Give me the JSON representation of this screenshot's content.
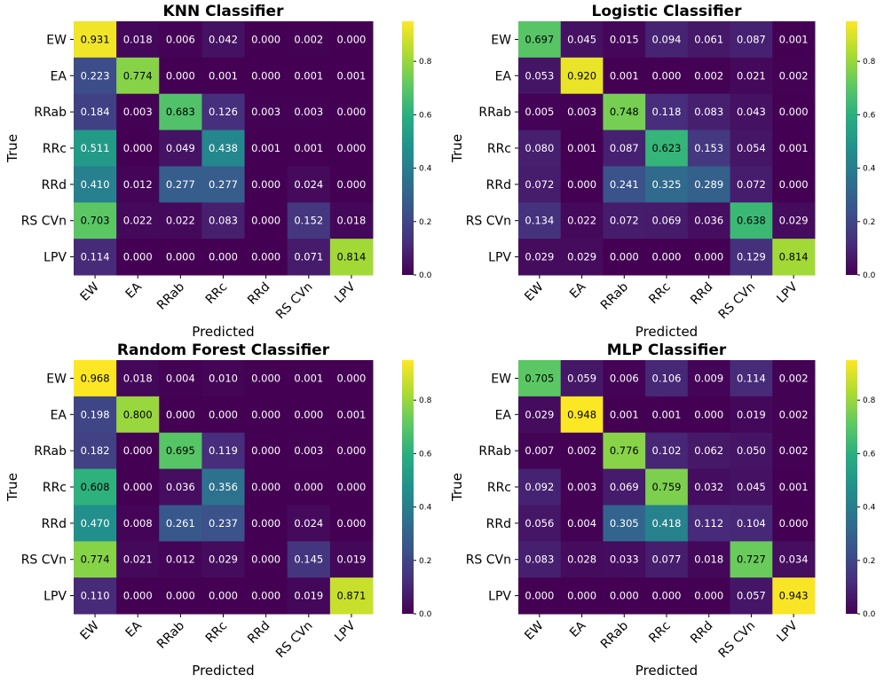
{
  "chart_data": [
    {
      "type": "heatmap",
      "title": "KNN Classifier",
      "xlabel": "Predicted",
      "ylabel": "True",
      "categories": [
        "EW",
        "EA",
        "RRab",
        "RRc",
        "RRd",
        "RS CVn",
        "LPV"
      ],
      "colormap": "viridis",
      "colorbar_ticks": [
        "0.0",
        "0.2",
        "0.4",
        "0.6",
        "0.8"
      ],
      "values": [
        [
          "0.931",
          "0.018",
          "0.006",
          "0.042",
          "0.000",
          "0.002",
          "0.000"
        ],
        [
          "0.223",
          "0.774",
          "0.000",
          "0.001",
          "0.000",
          "0.001",
          "0.001"
        ],
        [
          "0.184",
          "0.003",
          "0.683",
          "0.126",
          "0.003",
          "0.003",
          "0.000"
        ],
        [
          "0.511",
          "0.000",
          "0.049",
          "0.438",
          "0.001",
          "0.001",
          "0.000"
        ],
        [
          "0.410",
          "0.012",
          "0.277",
          "0.277",
          "0.000",
          "0.024",
          "0.000"
        ],
        [
          "0.703",
          "0.022",
          "0.022",
          "0.083",
          "0.000",
          "0.152",
          "0.018"
        ],
        [
          "0.114",
          "0.000",
          "0.000",
          "0.000",
          "0.000",
          "0.071",
          "0.814"
        ]
      ]
    },
    {
      "type": "heatmap",
      "title": "Logistic Classifier",
      "xlabel": "Predicted",
      "ylabel": "True",
      "categories": [
        "EW",
        "EA",
        "RRab",
        "RRc",
        "RRd",
        "RS CVn",
        "LPV"
      ],
      "colormap": "viridis",
      "colorbar_ticks": [
        "0.0",
        "0.2",
        "0.4",
        "0.6",
        "0.8"
      ],
      "values": [
        [
          "0.697",
          "0.045",
          "0.015",
          "0.094",
          "0.061",
          "0.087",
          "0.001"
        ],
        [
          "0.053",
          "0.920",
          "0.001",
          "0.000",
          "0.002",
          "0.021",
          "0.002"
        ],
        [
          "0.005",
          "0.003",
          "0.748",
          "0.118",
          "0.083",
          "0.043",
          "0.000"
        ],
        [
          "0.080",
          "0.001",
          "0.087",
          "0.623",
          "0.153",
          "0.054",
          "0.001"
        ],
        [
          "0.072",
          "0.000",
          "0.241",
          "0.325",
          "0.289",
          "0.072",
          "0.000"
        ],
        [
          "0.134",
          "0.022",
          "0.072",
          "0.069",
          "0.036",
          "0.638",
          "0.029"
        ],
        [
          "0.029",
          "0.029",
          "0.000",
          "0.000",
          "0.000",
          "0.129",
          "0.814"
        ]
      ]
    },
    {
      "type": "heatmap",
      "title": "Random Forest Classifier",
      "xlabel": "Predicted",
      "ylabel": "True",
      "categories": [
        "EW",
        "EA",
        "RRab",
        "RRc",
        "RRd",
        "RS CVn",
        "LPV"
      ],
      "colormap": "viridis",
      "colorbar_ticks": [
        "0.0",
        "0.2",
        "0.4",
        "0.6",
        "0.8"
      ],
      "values": [
        [
          "0.968",
          "0.018",
          "0.004",
          "0.010",
          "0.000",
          "0.001",
          "0.000"
        ],
        [
          "0.198",
          "0.800",
          "0.000",
          "0.000",
          "0.000",
          "0.000",
          "0.001"
        ],
        [
          "0.182",
          "0.000",
          "0.695",
          "0.119",
          "0.000",
          "0.003",
          "0.000"
        ],
        [
          "0.608",
          "0.000",
          "0.036",
          "0.356",
          "0.000",
          "0.000",
          "0.000"
        ],
        [
          "0.470",
          "0.008",
          "0.261",
          "0.237",
          "0.000",
          "0.024",
          "0.000"
        ],
        [
          "0.774",
          "0.021",
          "0.012",
          "0.029",
          "0.000",
          "0.145",
          "0.019"
        ],
        [
          "0.110",
          "0.000",
          "0.000",
          "0.000",
          "0.000",
          "0.019",
          "0.871"
        ]
      ]
    },
    {
      "type": "heatmap",
      "title": "MLP Classifier",
      "xlabel": "Predicted",
      "ylabel": "True",
      "categories": [
        "EW",
        "EA",
        "RRab",
        "RRc",
        "RRd",
        "RS CVn",
        "LPV"
      ],
      "colormap": "viridis",
      "colorbar_ticks": [
        "0.0",
        "0.2",
        "0.4",
        "0.6",
        "0.8"
      ],
      "values": [
        [
          "0.705",
          "0.059",
          "0.006",
          "0.106",
          "0.009",
          "0.114",
          "0.002"
        ],
        [
          "0.029",
          "0.948",
          "0.001",
          "0.001",
          "0.000",
          "0.019",
          "0.002"
        ],
        [
          "0.007",
          "0.002",
          "0.776",
          "0.102",
          "0.062",
          "0.050",
          "0.002"
        ],
        [
          "0.092",
          "0.003",
          "0.069",
          "0.759",
          "0.032",
          "0.045",
          "0.001"
        ],
        [
          "0.056",
          "0.004",
          "0.305",
          "0.418",
          "0.112",
          "0.104",
          "0.000"
        ],
        [
          "0.083",
          "0.028",
          "0.033",
          "0.077",
          "0.018",
          "0.727",
          "0.034"
        ],
        [
          "0.000",
          "0.000",
          "0.000",
          "0.000",
          "0.000",
          "0.057",
          "0.943"
        ]
      ]
    }
  ]
}
